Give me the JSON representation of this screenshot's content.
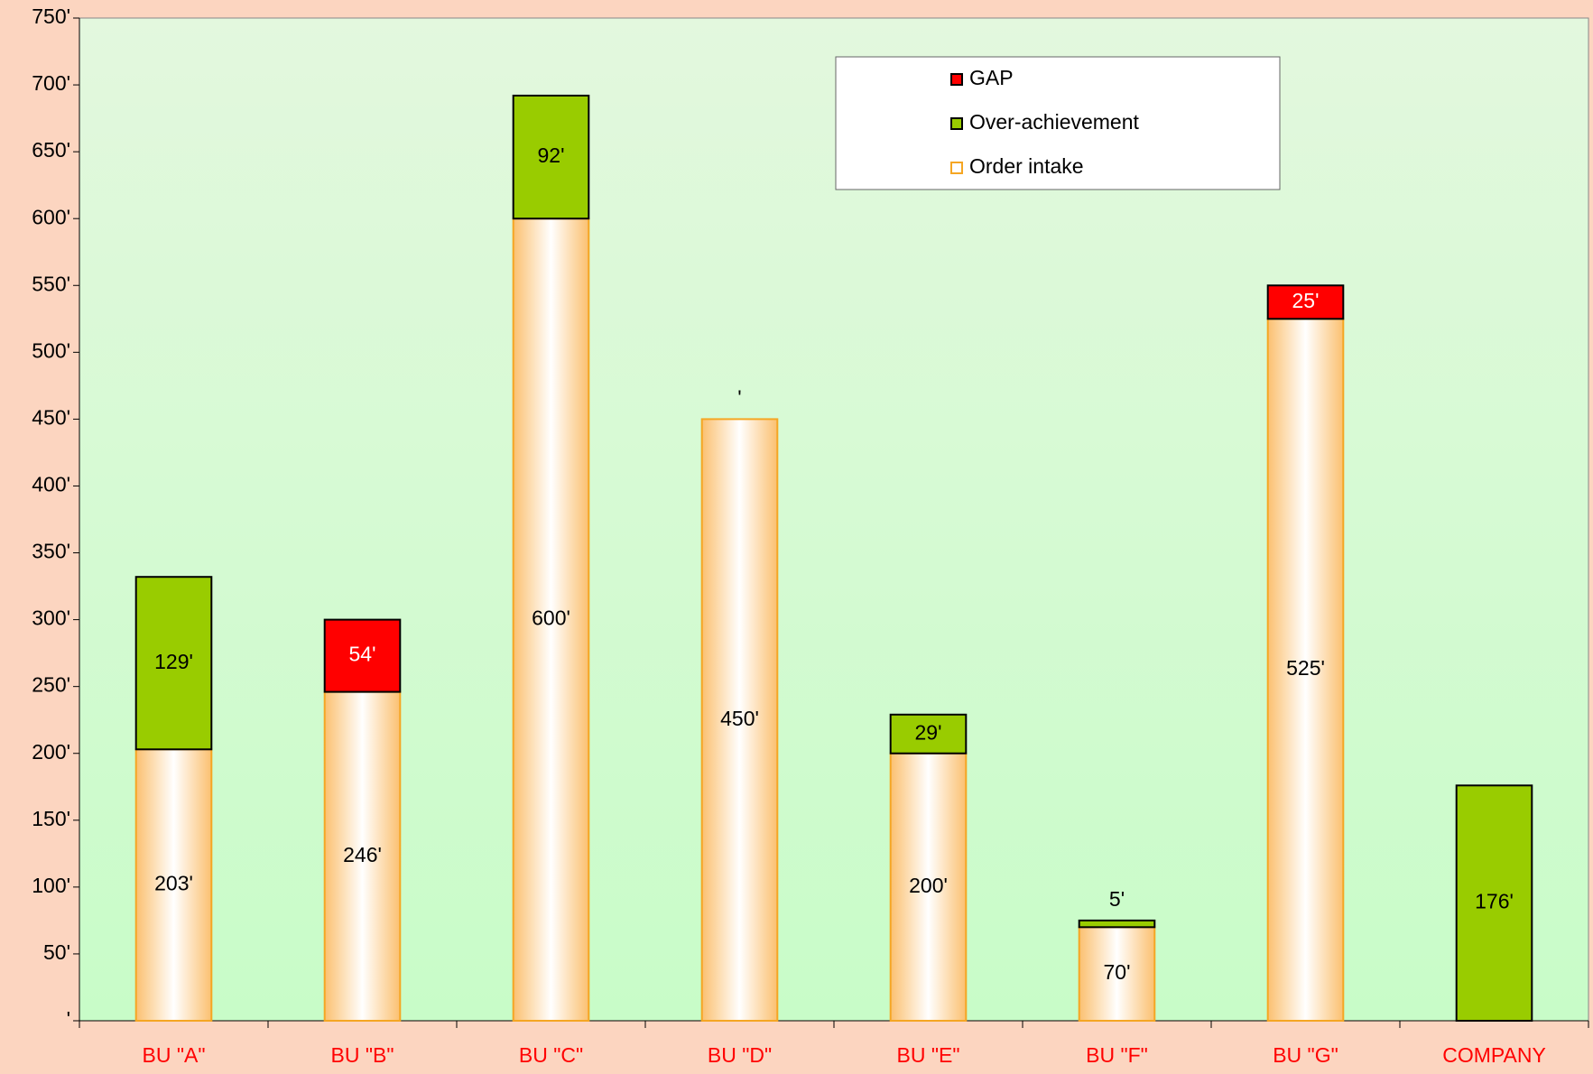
{
  "chart_data": {
    "type": "stacked_bar",
    "categories": [
      "BU \"A\"",
      "BU \"B\"",
      "BU \"C\"",
      "BU \"D\"",
      "BU \"E\"",
      "BU \"F\"",
      "BU \"G\"",
      "COMPANY"
    ],
    "series": [
      {
        "name": "Order intake",
        "color": "#f5a623",
        "values": [
          203,
          246,
          600,
          450,
          200,
          70,
          525,
          null
        ],
        "value_labels": [
          "203'",
          "246'",
          "600'",
          "450'",
          "200'",
          "70'",
          "525'",
          null
        ]
      },
      {
        "name": "Over-achievement",
        "color": "#99cc00",
        "values": [
          129,
          null,
          92,
          0,
          29,
          5,
          null,
          176
        ],
        "value_labels": [
          "129'",
          null,
          "92'",
          "'",
          "29'",
          "5'",
          null,
          "176'"
        ]
      },
      {
        "name": "GAP",
        "color": "#ff0000",
        "values": [
          null,
          54,
          null,
          null,
          null,
          null,
          25,
          null
        ],
        "value_labels": [
          null,
          "54'",
          null,
          null,
          null,
          null,
          "25'",
          null
        ]
      }
    ],
    "ylim": [
      0,
      750
    ],
    "yticks": [
      {
        "value": 0,
        "label": "'"
      },
      {
        "value": 50,
        "label": "50'"
      },
      {
        "value": 100,
        "label": "100'"
      },
      {
        "value": 150,
        "label": "150'"
      },
      {
        "value": 200,
        "label": "200'"
      },
      {
        "value": 250,
        "label": "250'"
      },
      {
        "value": 300,
        "label": "300'"
      },
      {
        "value": 350,
        "label": "350'"
      },
      {
        "value": 400,
        "label": "400'"
      },
      {
        "value": 450,
        "label": "450'"
      },
      {
        "value": 500,
        "label": "500'"
      },
      {
        "value": 550,
        "label": "550'"
      },
      {
        "value": 600,
        "label": "600'"
      },
      {
        "value": 650,
        "label": "650'"
      },
      {
        "value": 700,
        "label": "700'"
      },
      {
        "value": 750,
        "label": "750'"
      }
    ],
    "legend": "top-right"
  }
}
